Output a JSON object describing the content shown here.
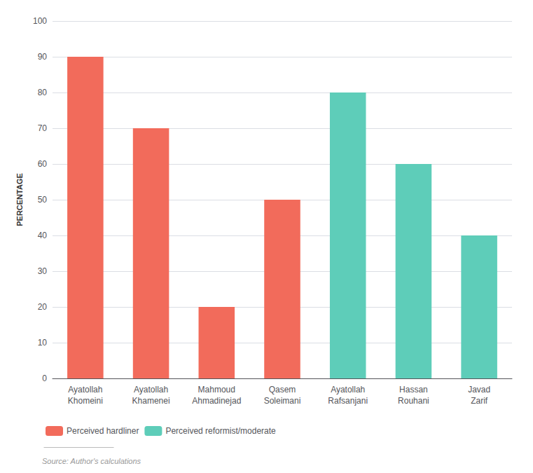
{
  "chart_data": {
    "type": "bar",
    "categories": [
      "Ayatollah\nKhomeini",
      "Ayatollah\nKhamenei",
      "Mahmoud\nAhmadinejad",
      "Qasem\nSoleimani",
      "Ayatollah\nRafsanjani",
      "Hassan\nRouhani",
      "Javad\nZarif"
    ],
    "series": [
      {
        "name": "Perceived hardliner",
        "color": "#f26b5b",
        "values": [
          90,
          70,
          20,
          50,
          null,
          null,
          null
        ]
      },
      {
        "name": "Perceived reformist/moderate",
        "color": "#5ecdb9",
        "values": [
          null,
          null,
          null,
          null,
          80,
          60,
          40
        ]
      }
    ],
    "ylabel": "PERCENTAGE",
    "ylim": [
      0,
      100
    ],
    "yticks": [
      0,
      10,
      20,
      30,
      40,
      50,
      60,
      70,
      80,
      90,
      100
    ],
    "grid": true,
    "legend": "lower left",
    "annotation": "Source: Author's calculations"
  }
}
